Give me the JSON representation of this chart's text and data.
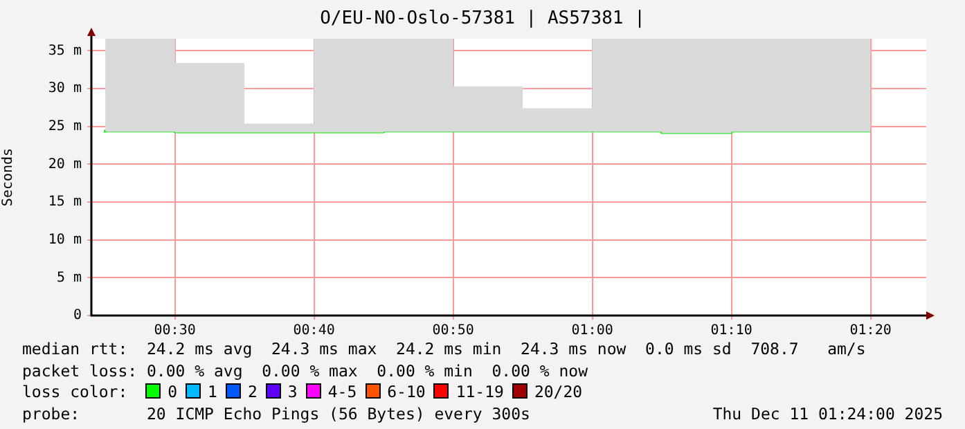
{
  "chart_data": {
    "type": "step",
    "title": "O/EU-NO-Oslo-57381 | AS57381 |",
    "ylabel": "Seconds",
    "x": [
      "2025-12-11T00:25",
      "2025-12-11T00:30",
      "2025-12-11T00:35",
      "2025-12-11T00:40",
      "2025-12-11T00:45",
      "2025-12-11T00:50",
      "2025-12-11T00:55",
      "2025-12-11T01:00",
      "2025-12-11T01:05",
      "2025-12-11T01:10",
      "2025-12-11T01:15",
      "2025-12-11T01:20"
    ],
    "series": [
      {
        "color": "#00ee00",
        "values": [
          24.2,
          24.4,
          24.3,
          24.3,
          24.3,
          24.4,
          24.4,
          24.4,
          24.4,
          24.2,
          24.4,
          24.4
        ],
        "lower": [
          24.1,
          24.3,
          24.2,
          24.2,
          24.2,
          24.3,
          24.3,
          24.3,
          24.3,
          24.1,
          24.3,
          24.3
        ],
        "upper": [
          24.5,
          36.6,
          33.4,
          25.4,
          36.6,
          36.6,
          30.3,
          27.4,
          36.6,
          36.6,
          36.6,
          36.6
        ]
      }
    ],
    "xlim": [
      "2025-12-11T00:24",
      "2025-12-11T01:24"
    ],
    "xticks": [
      {
        "value": "2025-12-11T00:30",
        "label": "00:30"
      },
      {
        "value": "2025-12-11T00:40",
        "label": "00:40"
      },
      {
        "value": "2025-12-11T00:50",
        "label": "00:50"
      },
      {
        "value": "2025-12-11T01:00",
        "label": "01:00"
      },
      {
        "value": "2025-12-11T01:10",
        "label": "01:10"
      },
      {
        "value": "2025-12-11T01:20",
        "label": "01:20"
      }
    ],
    "ylim": [
      0,
      36.6
    ],
    "yticks": [
      0,
      {
        "value": 5,
        "label": "5 m"
      },
      {
        "value": 10,
        "label": "10 m"
      },
      {
        "value": 15,
        "label": "15 m"
      },
      {
        "value": 20,
        "label": "20 m"
      },
      {
        "value": 25,
        "label": "25 m"
      },
      {
        "value": 30,
        "label": "30 m"
      },
      {
        "value": 35,
        "label": "35 m"
      }
    ],
    "grid": true,
    "legend": false,
    "annotations": [
      "median rtt:  24.2 ms avg  24.3 ms max  24.2 ms min  24.3 ms now  0.0 ms sd  708.7   am/s",
      "packet loss: 0.00 % avg  0.00 % max  0.00 % min  0.00 % now",
      "loss color:",
      "0",
      "1",
      "2",
      "3",
      "4-5",
      "6-10",
      "11-19",
      "20/20",
      "probe:       20 ICMP Echo Pings (56 Bytes) every 300s",
      "Thu Dec 11 01:24:00 2025"
    ]
  }
}
